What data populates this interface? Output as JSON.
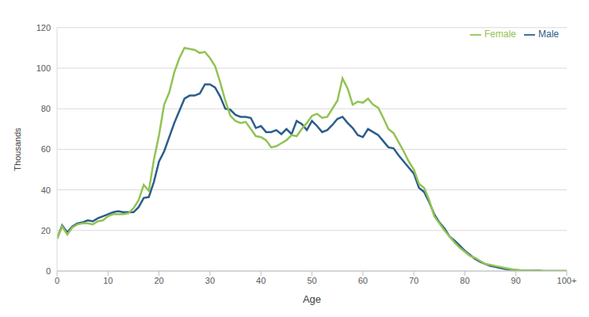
{
  "chart_data": {
    "type": "line",
    "x_label": "Age",
    "y_label": "Thousands",
    "x": [
      0,
      1,
      2,
      3,
      4,
      5,
      6,
      7,
      8,
      9,
      10,
      11,
      12,
      13,
      14,
      15,
      16,
      17,
      18,
      19,
      20,
      21,
      22,
      23,
      24,
      25,
      26,
      27,
      28,
      29,
      30,
      31,
      32,
      33,
      34,
      35,
      36,
      37,
      38,
      39,
      40,
      41,
      42,
      43,
      44,
      45,
      46,
      47,
      48,
      49,
      50,
      51,
      52,
      53,
      54,
      55,
      56,
      57,
      58,
      59,
      60,
      61,
      62,
      63,
      64,
      65,
      66,
      67,
      68,
      69,
      70,
      71,
      72,
      73,
      74,
      75,
      76,
      77,
      78,
      79,
      80,
      81,
      82,
      83,
      84,
      85,
      86,
      87,
      88,
      89,
      90,
      91,
      92,
      93,
      94,
      95,
      96,
      97,
      98,
      99,
      100
    ],
    "series": [
      {
        "name": "Male",
        "color": "#2b5d8c",
        "values": [
          16,
          22.5,
          19,
          22,
          23.5,
          24,
          25,
          24.5,
          26,
          27,
          28,
          29,
          29.5,
          29,
          29,
          29,
          31.5,
          36,
          36.5,
          44,
          54,
          59,
          66,
          73,
          79,
          85,
          86.5,
          86.5,
          87.5,
          92,
          92,
          90.5,
          86,
          80,
          79.5,
          77,
          76,
          76,
          75.5,
          70.5,
          71.5,
          68.5,
          68.5,
          69.5,
          67.5,
          70,
          67.5,
          74,
          72.5,
          69.5,
          74,
          71.5,
          68.5,
          69.5,
          72,
          75,
          76,
          73,
          70.5,
          67,
          66,
          70,
          68.5,
          67,
          64,
          61,
          60.5,
          57,
          54,
          51,
          48,
          41,
          39,
          34,
          28,
          24,
          21,
          17,
          15,
          12.5,
          10,
          8,
          6,
          4.5,
          3.5,
          2.5,
          2,
          1.5,
          1,
          0.7,
          0.5,
          0.3,
          0.2,
          0.2,
          0.3,
          0.1,
          0,
          0,
          0,
          0,
          0
        ]
      },
      {
        "name": "Female",
        "color": "#92c353",
        "values": [
          16,
          22,
          18,
          21.5,
          23,
          23.5,
          23.5,
          23,
          24.5,
          25,
          27,
          28,
          28,
          28,
          28.5,
          31,
          35,
          42.5,
          39.5,
          55,
          67,
          82,
          88,
          98,
          105,
          110,
          109.5,
          109,
          107.5,
          108,
          105,
          101,
          93,
          84,
          76.5,
          74,
          73,
          73.5,
          70,
          66.5,
          66,
          64.5,
          61,
          61.5,
          63,
          64.5,
          67,
          66.5,
          70,
          73,
          76.5,
          77.5,
          75.5,
          76,
          80,
          84,
          95,
          90,
          82,
          83.5,
          83,
          85,
          82,
          80.5,
          75.5,
          70,
          68,
          63.5,
          59,
          54,
          50,
          43,
          41,
          35,
          27,
          23.5,
          20,
          17,
          14,
          11.5,
          9.5,
          7.5,
          6.5,
          5,
          3.5,
          3,
          2.5,
          2,
          1.5,
          1,
          0.5,
          0.3,
          0.2,
          0.2,
          0.2,
          0.1,
          0,
          0,
          0,
          0,
          0
        ]
      }
    ],
    "xlim": [
      0,
      100
    ],
    "xticks": [
      0,
      10,
      20,
      30,
      40,
      50,
      60,
      70,
      80,
      90,
      {
        "value": 100,
        "label": "100+"
      }
    ],
    "ylim": [
      0,
      120
    ],
    "yticks": [
      0,
      20,
      40,
      60,
      80,
      100,
      120
    ],
    "grid": true,
    "legend": "upper right"
  }
}
